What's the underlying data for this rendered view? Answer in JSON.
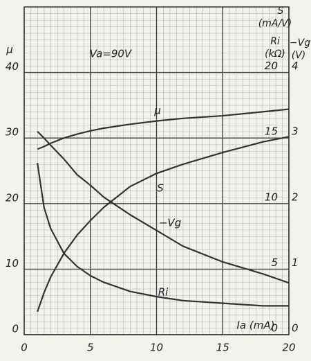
{
  "chart_data": {
    "type": "line",
    "annotation": "Va=90V",
    "x_label": "Ia (mA)",
    "y_label": "μ",
    "y2_labels": [
      "S",
      "(mA/V)",
      "Ri",
      "(kΩ)"
    ],
    "y3_labels": [
      "−Vg",
      "(V)"
    ],
    "x": [
      1,
      1.5,
      2,
      3,
      4,
      5,
      6,
      8,
      10,
      12,
      15,
      18,
      20
    ],
    "series": [
      {
        "name": "μ",
        "color": "#333333",
        "axis": "y",
        "values": [
          28.3,
          28.7,
          29.2,
          30,
          30.6,
          31.1,
          31.5,
          32.1,
          32.6,
          33,
          33.4,
          34,
          34.4
        ]
      },
      {
        "name": "S",
        "color": "#333333",
        "axis": "y2",
        "values": [
          1.75,
          3.2,
          4.4,
          6.2,
          7.6,
          8.7,
          9.7,
          11.3,
          12.3,
          13,
          13.9,
          14.7,
          15.1
        ]
      },
      {
        "name": "−Vg",
        "color": "#333333",
        "axis": "y3",
        "values": [
          3.1,
          3.0,
          2.89,
          2.68,
          2.44,
          2.28,
          2.1,
          1.83,
          1.59,
          1.35,
          1.11,
          0.93,
          0.79
        ]
      },
      {
        "name": "Ri",
        "color": "#333333",
        "axis": "y2",
        "values": [
          13.1,
          9.7,
          8.1,
          6.2,
          5.2,
          4.5,
          4.0,
          3.3,
          2.9,
          2.6,
          2.4,
          2.2,
          2.2
        ]
      }
    ],
    "xlim": [
      0,
      20
    ],
    "xticks": [
      0,
      5,
      10,
      15,
      20
    ],
    "ylim": [
      0,
      50
    ],
    "yticks": [
      0,
      10,
      20,
      30,
      40
    ],
    "y2lim": [
      0,
      25
    ],
    "y2ticks": [
      0,
      5,
      10,
      15,
      20
    ],
    "y3lim": [
      0,
      5
    ],
    "y3ticks": [
      0,
      1,
      2,
      3,
      4
    ],
    "grid": true
  }
}
